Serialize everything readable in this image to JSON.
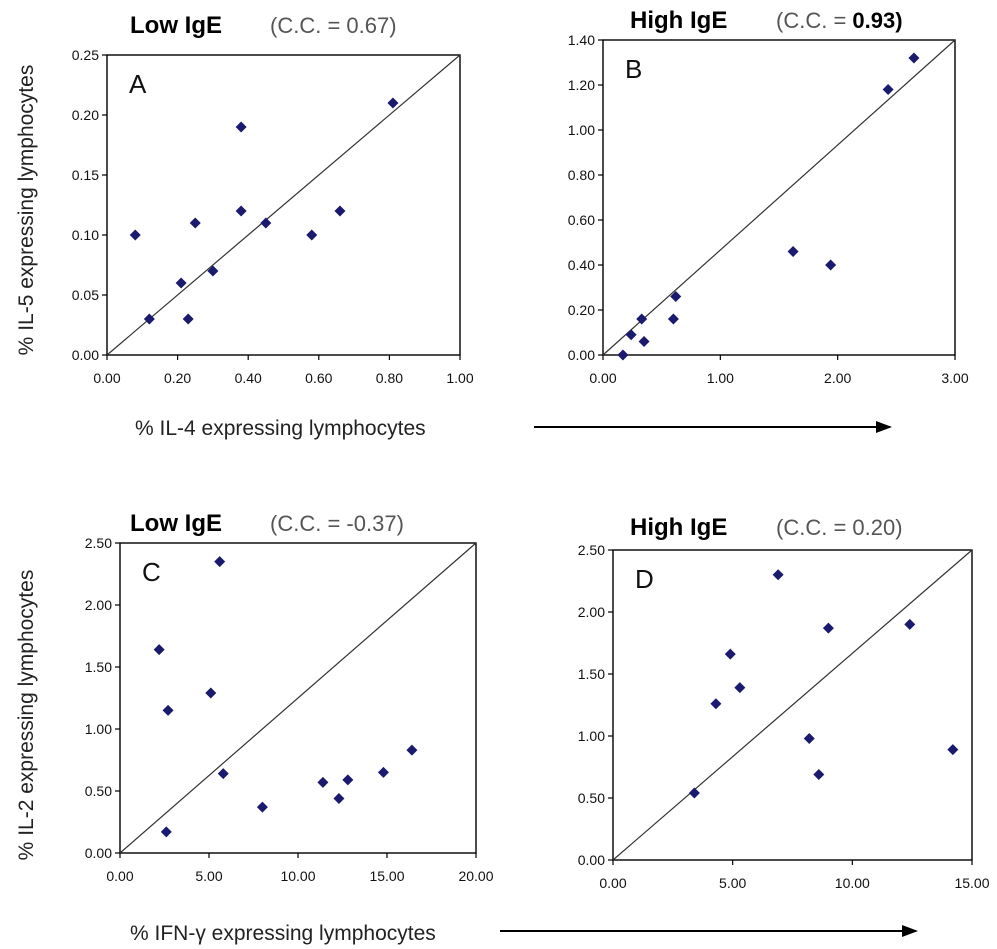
{
  "ylabel_top": "% IL-5 expressing lymphocytes",
  "ylabel_bottom": "% IL-2 expressing lymphocytes",
  "xlabel_top": "% IL-4 expressing lymphocytes",
  "xlabel_bottom": "% IFN-γ expressing lymphocytes",
  "colors": {
    "marker": "#1a1a6e",
    "line": "#333333",
    "arrow": "#000000"
  },
  "chart_data": [
    {
      "type": "scatter",
      "title": "Low IgE",
      "subtitle_prefix": "(C.C. = ",
      "subtitle_value": "0.67",
      "subtitle_suffix": ")",
      "panel_label": "A",
      "xlim": [
        0,
        1
      ],
      "ylim": [
        0,
        0.25
      ],
      "xticks": [
        "0.00",
        "0.20",
        "0.40",
        "0.60",
        "0.80",
        "1.00"
      ],
      "yticks": [
        "0.00",
        "0.05",
        "0.10",
        "0.15",
        "0.20",
        "0.25"
      ],
      "diagonal": true,
      "grid": false,
      "x": [
        0.08,
        0.12,
        0.21,
        0.23,
        0.25,
        0.3,
        0.38,
        0.38,
        0.45,
        0.58,
        0.66,
        0.81
      ],
      "y": [
        0.1,
        0.03,
        0.06,
        0.03,
        0.11,
        0.07,
        0.19,
        0.12,
        0.11,
        0.1,
        0.12,
        0.21
      ]
    },
    {
      "type": "scatter",
      "title": "High IgE",
      "subtitle_prefix": "(C.C. = ",
      "subtitle_value": "0.93)",
      "subtitle_suffix": "",
      "panel_label": "B",
      "xlim": [
        0,
        3
      ],
      "ylim": [
        0,
        1.4
      ],
      "xticks": [
        "0.00",
        "1.00",
        "2.00",
        "3.00"
      ],
      "yticks": [
        "0.00",
        "0.20",
        "0.40",
        "0.60",
        "0.80",
        "1.00",
        "1.20",
        "1.40"
      ],
      "diagonal": true,
      "grid": false,
      "x": [
        0.17,
        0.24,
        0.33,
        0.35,
        0.6,
        0.62,
        1.62,
        1.94,
        2.43,
        2.65
      ],
      "y": [
        0.0,
        0.09,
        0.16,
        0.06,
        0.16,
        0.26,
        0.46,
        0.4,
        1.18,
        1.32
      ]
    },
    {
      "type": "scatter",
      "title": "Low IgE",
      "subtitle_prefix": "(C.C. = ",
      "subtitle_value": "-0.37",
      "subtitle_suffix": ")",
      "panel_label": "C",
      "xlim": [
        0,
        20
      ],
      "ylim": [
        0,
        2.5
      ],
      "xticks": [
        "0.00",
        "5.00",
        "10.00",
        "15.00",
        "20.00"
      ],
      "yticks": [
        "0.00",
        "0.50",
        "1.00",
        "1.50",
        "2.00",
        "2.50"
      ],
      "diagonal": true,
      "grid": false,
      "x": [
        2.2,
        2.6,
        2.7,
        5.1,
        5.6,
        5.8,
        8.0,
        11.4,
        12.3,
        12.8,
        14.8,
        16.4
      ],
      "y": [
        1.64,
        0.17,
        1.15,
        1.29,
        2.35,
        0.64,
        0.37,
        0.57,
        0.44,
        0.59,
        0.65,
        0.83
      ]
    },
    {
      "type": "scatter",
      "title": "High IgE",
      "subtitle_prefix": "(C.C. = ",
      "subtitle_value": "0.20",
      "subtitle_suffix": ")",
      "panel_label": "D",
      "xlim": [
        0,
        15
      ],
      "ylim": [
        0,
        2.5
      ],
      "xticks": [
        "0.00",
        "5.00",
        "10.00",
        "15.00"
      ],
      "yticks": [
        "0.00",
        "0.50",
        "1.00",
        "1.50",
        "2.00",
        "2.50"
      ],
      "diagonal": true,
      "grid": false,
      "x": [
        3.4,
        4.3,
        4.9,
        5.3,
        6.9,
        8.2,
        8.6,
        9.0,
        12.4,
        14.2
      ],
      "y": [
        0.54,
        1.26,
        1.66,
        1.39,
        2.3,
        0.98,
        0.69,
        1.87,
        1.9,
        0.89
      ]
    }
  ]
}
